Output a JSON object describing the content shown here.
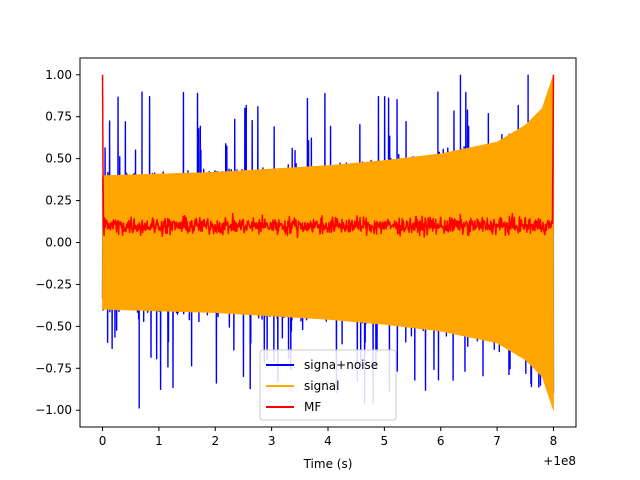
{
  "chart_data": {
    "type": "line",
    "title": "",
    "xlabel": "Time (s)",
    "ylabel": "",
    "x_offset_label": "+1e8",
    "xlim": [
      -0.4,
      8.4
    ],
    "ylim": [
      -1.1,
      1.1
    ],
    "xticks": [
      0,
      1,
      2,
      3,
      4,
      5,
      6,
      7,
      8
    ],
    "xtick_labels": [
      "0",
      "1",
      "2",
      "3",
      "4",
      "5",
      "6",
      "7",
      "8"
    ],
    "yticks": [
      -1.0,
      -0.75,
      -0.5,
      -0.25,
      0.0,
      0.25,
      0.5,
      0.75,
      1.0
    ],
    "ytick_labels": [
      "−1.00",
      "−0.75",
      "−0.50",
      "−0.25",
      "0.00",
      "0.25",
      "0.50",
      "0.75",
      "1.00"
    ],
    "legend_position": "lower-center",
    "series": [
      {
        "name": "signa+noise",
        "color": "#0000ff",
        "description": "noisy signal, amplitude envelope ~0.4 with spikes up to ~1.0",
        "x_range": [
          0,
          8
        ],
        "peak_spikes": [
          {
            "x": 0.65,
            "y": -0.99
          },
          {
            "x": 0.7,
            "y": 0.9
          },
          {
            "x": 2.55,
            "y": 0.82
          },
          {
            "x": 4.65,
            "y": -0.96
          },
          {
            "x": 4.8,
            "y": -0.96
          },
          {
            "x": 5.95,
            "y": 0.9
          },
          {
            "x": 6.35,
            "y": 1.0
          },
          {
            "x": 7.55,
            "y": 1.0
          }
        ]
      },
      {
        "name": "signal",
        "color": "#ffa500",
        "description": "chirp with amplitude growing from ~0.4 at t=0 to ~1.0 at t=8",
        "x_range": [
          0,
          8
        ],
        "envelope": [
          {
            "x": 0,
            "y": 0.4
          },
          {
            "x": 1,
            "y": 0.41
          },
          {
            "x": 2,
            "y": 0.42
          },
          {
            "x": 3,
            "y": 0.44
          },
          {
            "x": 4,
            "y": 0.46
          },
          {
            "x": 5,
            "y": 0.49
          },
          {
            "x": 6,
            "y": 0.53
          },
          {
            "x": 7,
            "y": 0.6
          },
          {
            "x": 7.5,
            "y": 0.7
          },
          {
            "x": 7.8,
            "y": 0.8
          },
          {
            "x": 8,
            "y": 1.0
          }
        ]
      },
      {
        "name": "MF",
        "color": "#ff0000",
        "description": "matched filter output, peaks of 1.0 at both ends, noisy baseline ~0.1",
        "x_range": [
          0,
          8
        ],
        "baseline": 0.1,
        "noise_range": [
          0.0,
          0.25
        ],
        "end_peaks": [
          {
            "x": 0.0,
            "y": 1.0
          },
          {
            "x": 8.0,
            "y": 1.0
          }
        ]
      }
    ]
  }
}
